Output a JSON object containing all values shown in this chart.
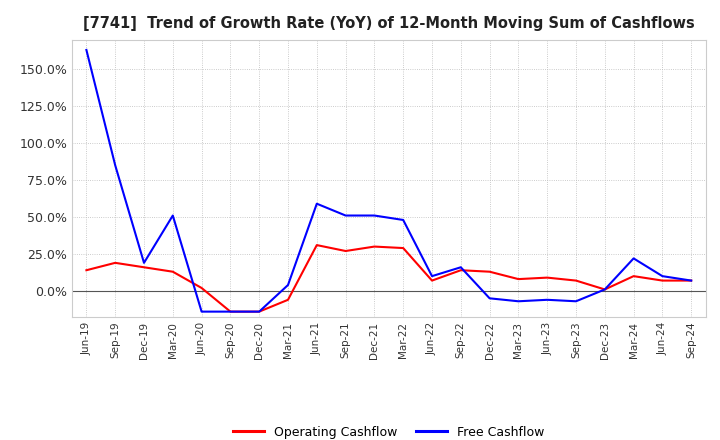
{
  "title": "[7741]  Trend of Growth Rate (YoY) of 12-Month Moving Sum of Cashflows",
  "x_labels": [
    "Jun-19",
    "Sep-19",
    "Dec-19",
    "Mar-20",
    "Jun-20",
    "Sep-20",
    "Dec-20",
    "Mar-21",
    "Jun-21",
    "Sep-21",
    "Dec-21",
    "Mar-22",
    "Jun-22",
    "Sep-22",
    "Dec-22",
    "Mar-23",
    "Jun-23",
    "Sep-23",
    "Dec-23",
    "Mar-24",
    "Jun-24",
    "Sep-24"
  ],
  "operating_cashflow": [
    0.14,
    0.19,
    0.16,
    0.13,
    0.02,
    -0.14,
    -0.14,
    -0.06,
    0.31,
    0.27,
    0.3,
    0.29,
    0.07,
    0.14,
    0.13,
    0.08,
    0.09,
    0.07,
    0.01,
    0.1,
    0.07,
    0.07
  ],
  "free_cashflow": [
    1.63,
    0.85,
    0.19,
    0.51,
    -0.14,
    -0.14,
    -0.14,
    0.04,
    0.59,
    0.51,
    0.51,
    0.48,
    0.1,
    0.16,
    -0.05,
    -0.07,
    -0.06,
    -0.07,
    0.01,
    0.22,
    0.1,
    0.07
  ],
  "ylim": [
    -0.175,
    1.7
  ],
  "yticks": [
    0.0,
    0.25,
    0.5,
    0.75,
    1.0,
    1.25,
    1.5
  ],
  "operating_color": "#ff0000",
  "free_color": "#0000ff",
  "background_color": "#ffffff",
  "grid_color": "#bbbbbb",
  "legend_labels": [
    "Operating Cashflow",
    "Free Cashflow"
  ]
}
